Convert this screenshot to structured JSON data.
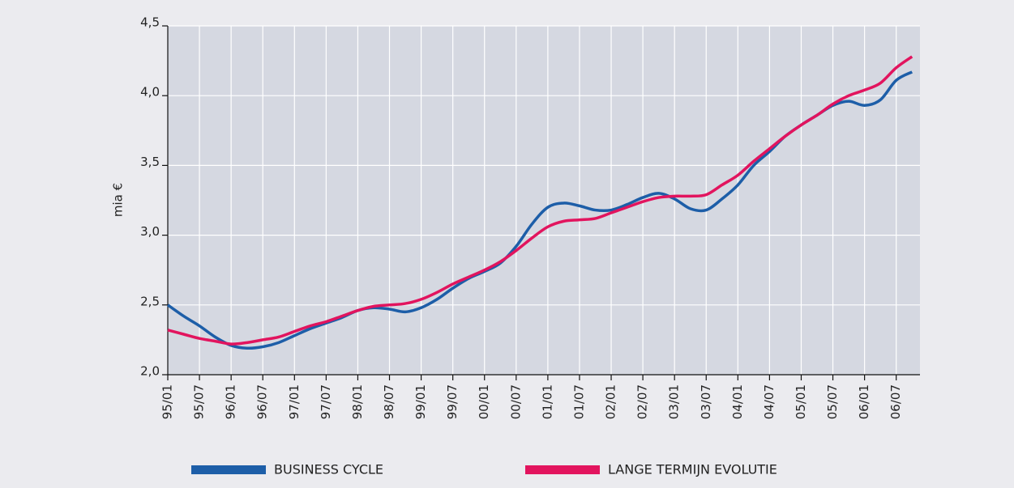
{
  "chart_data": {
    "type": "line",
    "y_label": "mia €",
    "categories": [
      "95/01",
      null,
      "95/07",
      null,
      "96/01",
      null,
      "96/07",
      null,
      "97/01",
      null,
      "97/07",
      null,
      "98/01",
      null,
      "98/07",
      null,
      "99/01",
      null,
      "99/07",
      null,
      "00/01",
      null,
      "00/07",
      null,
      "01/01",
      null,
      "01/07",
      null,
      "02/01",
      null,
      "02/07",
      null,
      "03/01",
      null,
      "03/07",
      null,
      "04/01",
      null,
      "04/07",
      null,
      "05/01",
      null,
      "05/07",
      null,
      "06/01",
      null,
      "06/07",
      null
    ],
    "series": [
      {
        "name": "BUSINESS CYCLE",
        "color": "#1d5ea8",
        "values": [
          2.5,
          2.42,
          2.35,
          2.27,
          2.21,
          2.19,
          2.2,
          2.23,
          2.28,
          2.33,
          2.37,
          2.41,
          2.46,
          2.48,
          2.47,
          2.45,
          2.48,
          2.54,
          2.62,
          2.69,
          2.74,
          2.8,
          2.92,
          3.08,
          3.2,
          3.23,
          3.21,
          3.18,
          3.18,
          3.22,
          3.27,
          3.3,
          3.26,
          3.19,
          3.18,
          3.26,
          3.36,
          3.5,
          3.6,
          3.71,
          3.79,
          3.86,
          3.93,
          3.96,
          3.93,
          3.97,
          4.11,
          4.17
        ]
      },
      {
        "name": "LANGE TERMIJN EVOLUTIE",
        "color": "#e2145e",
        "values": [
          2.32,
          2.29,
          2.26,
          2.24,
          2.22,
          2.23,
          2.25,
          2.27,
          2.31,
          2.35,
          2.38,
          2.42,
          2.46,
          2.49,
          2.5,
          2.51,
          2.54,
          2.59,
          2.65,
          2.7,
          2.75,
          2.81,
          2.89,
          2.98,
          3.06,
          3.1,
          3.11,
          3.12,
          3.16,
          3.2,
          3.24,
          3.27,
          3.28,
          3.28,
          3.29,
          3.36,
          3.43,
          3.53,
          3.62,
          3.71,
          3.79,
          3.86,
          3.94,
          4.0,
          4.04,
          4.09,
          4.2,
          4.28
        ]
      }
    ],
    "ylim": [
      2.0,
      4.5
    ],
    "yticks": [
      {
        "value": 2.0,
        "label": "2,0"
      },
      {
        "value": 2.5,
        "label": "2,5"
      },
      {
        "value": 3.0,
        "label": "3,0"
      },
      {
        "value": 3.5,
        "label": "3,5"
      },
      {
        "value": 4.0,
        "label": "4,0"
      },
      {
        "value": 4.5,
        "label": "4,5"
      }
    ],
    "grid": true,
    "legend": "bottom"
  }
}
